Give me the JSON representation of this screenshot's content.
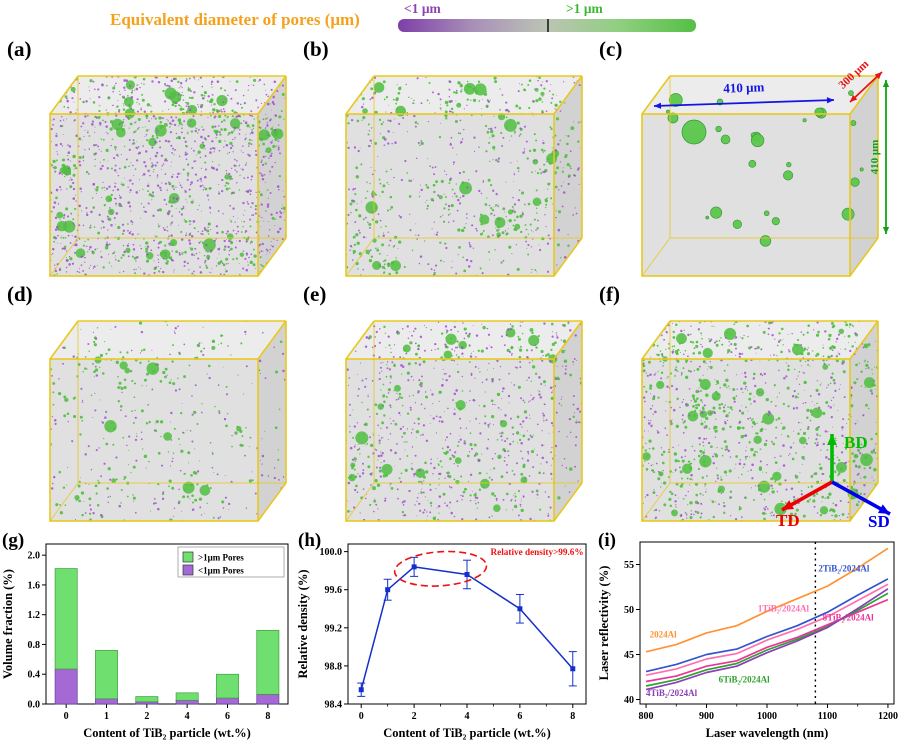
{
  "colorbar": {
    "title": "Equivalent diameter of pores (μm)",
    "title_color": "#f5a11c",
    "left_label": "<1 μm",
    "right_label": ">1 μm",
    "left_color": "#8e44ad",
    "right_color": "#3db832",
    "gradient": [
      "#7d3fa8",
      "#a88fb8",
      "#bcc4b4",
      "#8ecf7e",
      "#54bf45"
    ]
  },
  "cube_style": {
    "edge_color": "#e8c81f",
    "purple_dot": "#a14fd0",
    "green_dot": "#4fbe3e"
  },
  "panels": [
    {
      "label": "(a)",
      "purple": 1100,
      "green": 520,
      "blobs": 40,
      "seed": 11
    },
    {
      "label": "(b)",
      "purple": 380,
      "green": 430,
      "blobs": 28,
      "seed": 22
    },
    {
      "label": "(c)",
      "purple": 0,
      "green": 0,
      "blobs": 0,
      "bubbles": 24,
      "seed": 33,
      "dims": {
        "width": "410 μm",
        "depth": "300 μm",
        "height": "410 μm",
        "width_color": "#1414e6",
        "depth_color": "#e61414",
        "height_color": "#14a214"
      }
    },
    {
      "label": "(d)",
      "purple": 210,
      "green": 250,
      "blobs": 13,
      "seed": 44
    },
    {
      "label": "(e)",
      "purple": 650,
      "green": 310,
      "blobs": 24,
      "seed": 55
    },
    {
      "label": "(f)",
      "purple": 520,
      "green": 660,
      "blobs": 34,
      "seed": 66
    }
  ],
  "axes_indicator": {
    "up_label": "BD",
    "up_color": "#00bb00",
    "left_label": "TD",
    "left_color": "#ee0000",
    "right_label": "SD",
    "right_color": "#0000ee"
  },
  "chart_data": [
    {
      "type": "bar",
      "panel_label": "(g)",
      "categories": [
        "0",
        "1",
        "2",
        "4",
        "6",
        "8"
      ],
      "series": [
        {
          "name": "<1μm Pores",
          "color": "#a569d6",
          "values": [
            0.47,
            0.07,
            0.03,
            0.05,
            0.08,
            0.13
          ]
        },
        {
          "name": ">1μm Pores",
          "color": "#6fe06f",
          "values": [
            1.35,
            0.65,
            0.07,
            0.1,
            0.32,
            0.86
          ]
        }
      ],
      "stacked": true,
      "legend_order": [
        1,
        0
      ],
      "xlabel": "Content of TiB₂ particle (wt.%)",
      "ylabel": "Volume fraction (%)",
      "yticks": [
        0.0,
        0.4,
        0.8,
        1.2,
        1.6,
        2.0
      ],
      "ylim": [
        0,
        2.15
      ]
    },
    {
      "type": "line",
      "panel_label": "(h)",
      "x": [
        0,
        1,
        2,
        4,
        6,
        8
      ],
      "y": [
        98.55,
        99.6,
        99.84,
        99.76,
        99.4,
        98.77
      ],
      "yerr": [
        0.07,
        0.11,
        0.1,
        0.15,
        0.15,
        0.18
      ],
      "line_color": "#1430cc",
      "xlabel": "Content of TiB₂ particle (wt.%)",
      "ylabel": "Relative density (%)",
      "xticks": [
        0,
        2,
        4,
        6,
        8
      ],
      "xminor": [
        1,
        3,
        5,
        7
      ],
      "yticks": [
        98.4,
        98.8,
        99.2,
        99.6,
        100.0
      ],
      "ylim": [
        98.4,
        100.08
      ],
      "xlim": [
        -0.5,
        8.5
      ],
      "annotation": {
        "text": "Relative density>99.6%",
        "color": "#ee1111",
        "ellipse_center_x": 3,
        "ellipse_center_y": 99.82
      }
    },
    {
      "type": "line-multi",
      "panel_label": "(i)",
      "x": [
        800,
        850,
        900,
        950,
        1000,
        1050,
        1100,
        1150,
        1200
      ],
      "series": [
        {
          "name": "2024Al",
          "color": "#ff9333",
          "values": [
            45.3,
            46.1,
            47.4,
            48.2,
            49.8,
            51.2,
            52.6,
            54.6,
            56.8
          ],
          "label_x": 806,
          "label_y": 46.9
        },
        {
          "name": "2TiB₂/2024Al",
          "color": "#3355cc",
          "values": [
            43.1,
            43.9,
            45.0,
            45.6,
            47.0,
            48.2,
            49.7,
            51.6,
            53.4
          ],
          "label_x": 1085,
          "label_y": 54.2
        },
        {
          "name": "1TiB₂/2024Al",
          "color": "#ff6fb0",
          "values": [
            42.7,
            43.4,
            44.5,
            45.1,
            46.6,
            47.8,
            49.2,
            51.0,
            52.8
          ],
          "label_x": 985,
          "label_y": 49.8
        },
        {
          "name": "8TiB₂/2024Al",
          "color": "#ee3399",
          "values": [
            42.0,
            42.6,
            43.7,
            44.3,
            45.8,
            46.9,
            48.3,
            49.7,
            51.1
          ],
          "label_x": 1092,
          "label_y": 48.8
        },
        {
          "name": "6TiB₂/2024Al",
          "color": "#2fa32f",
          "values": [
            41.5,
            42.2,
            43.3,
            44.0,
            45.5,
            46.7,
            48.1,
            49.9,
            51.8
          ],
          "label_x": 920,
          "label_y": 41.9
        },
        {
          "name": "4TiB₂/2024Al",
          "color": "#8a3fb5",
          "values": [
            41.1,
            41.9,
            43.0,
            43.7,
            45.2,
            46.5,
            48.0,
            50.1,
            52.3
          ],
          "label_x": 800,
          "label_y": 40.4
        }
      ],
      "vline_x": 1080,
      "xlabel": "Laser wavelength (nm)",
      "ylabel": "Laser reflectivity (%)",
      "xticks": [
        800,
        900,
        1000,
        1100,
        1200
      ],
      "xminor": [
        850,
        950,
        1050,
        1150
      ],
      "yticks": [
        40,
        45,
        50,
        55
      ],
      "ylim": [
        39.5,
        57.5
      ],
      "xlim": [
        790,
        1210
      ]
    }
  ]
}
